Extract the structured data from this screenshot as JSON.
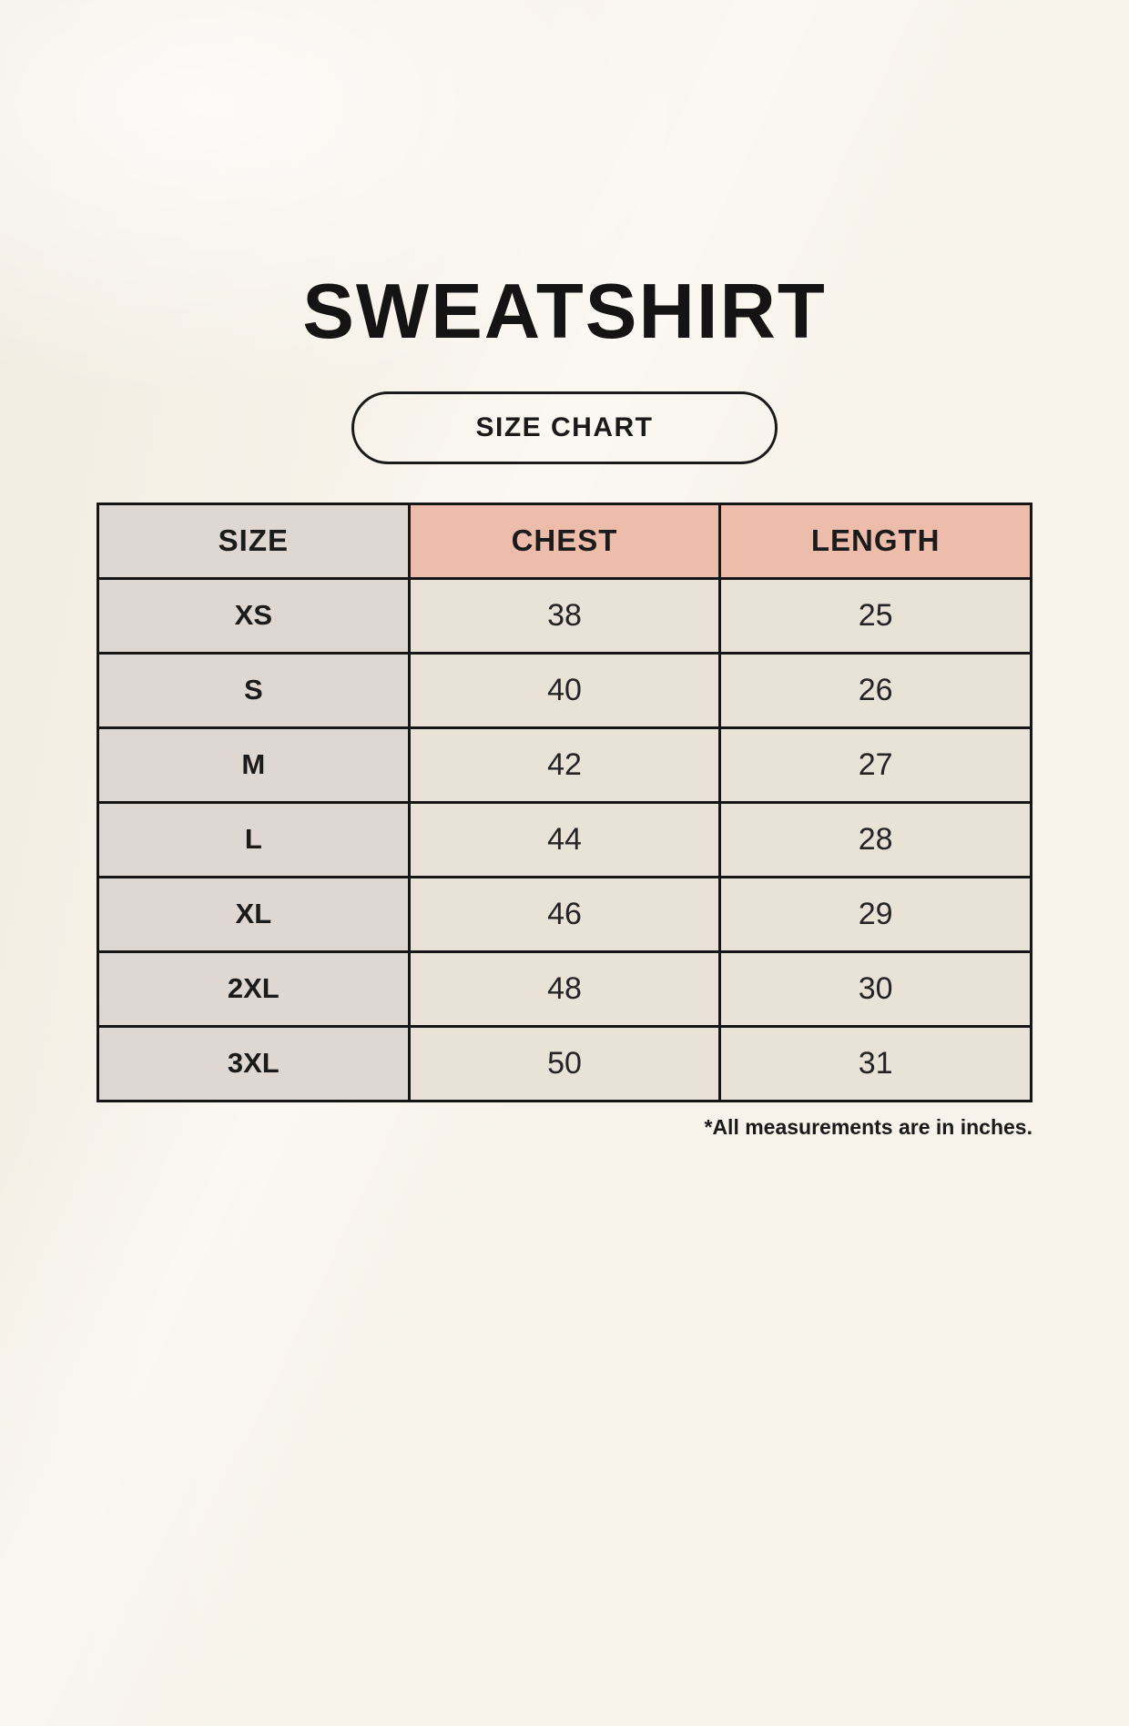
{
  "page": {
    "title": "SWEATSHIRT",
    "badge_label": "SIZE CHART",
    "footnote": "*All measurements are in inches."
  },
  "chart_data": {
    "type": "table",
    "title": "SWEATSHIRT",
    "subtitle": "SIZE CHART",
    "columns": [
      "SIZE",
      "CHEST",
      "LENGTH"
    ],
    "rows": [
      [
        "XS",
        38,
        25
      ],
      [
        "S",
        40,
        26
      ],
      [
        "M",
        42,
        27
      ],
      [
        "L",
        44,
        28
      ],
      [
        "XL",
        46,
        29
      ],
      [
        "2XL",
        48,
        30
      ],
      [
        "3XL",
        50,
        31
      ]
    ],
    "note": "*All measurements are in inches.",
    "units": "inches",
    "layout": {
      "columns_equal_width": true,
      "header_accent_color": "#edbcab",
      "size_column_color": "#ded7d2",
      "value_cell_color": "#e9e2d7",
      "border_color": "#161616",
      "background_color": "#f7f3ea"
    }
  }
}
